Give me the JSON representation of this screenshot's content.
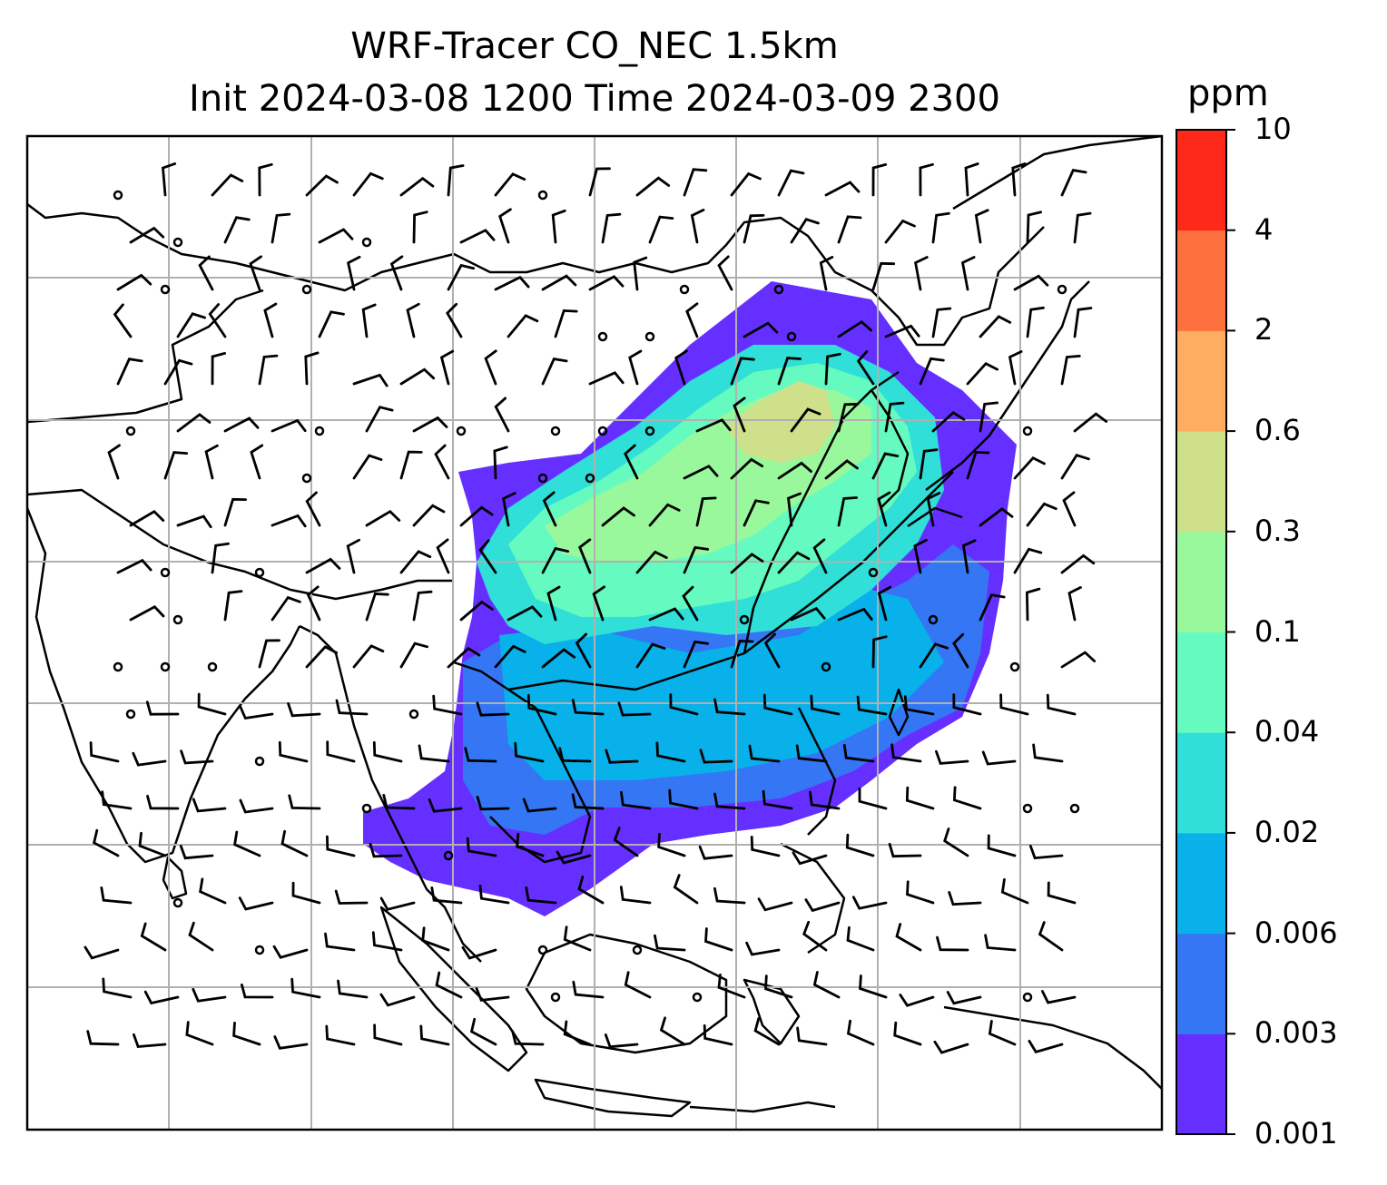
{
  "title": {
    "line1": "WRF-Tracer CO_NEC 1.5km",
    "line2": "Init 2024-03-08 1200 Time 2024-03-09 2300"
  },
  "colorbar": {
    "unit": "ppm",
    "levels": [
      "0.001",
      "0.003",
      "0.006",
      "0.02",
      "0.04",
      "0.1",
      "0.3",
      "0.6",
      "2",
      "4",
      "10"
    ],
    "colors": [
      "#6530ff",
      "#3576f5",
      "#08b1ea",
      "#2fdfd8",
      "#65fac0",
      "#9af89c",
      "#cfe08a",
      "#ffad60",
      "#ff703f",
      "#ff2919"
    ]
  },
  "colors": {
    "gridline": "#b0b0b0",
    "coastline": "#000000",
    "wind_barb": "#000000"
  }
}
